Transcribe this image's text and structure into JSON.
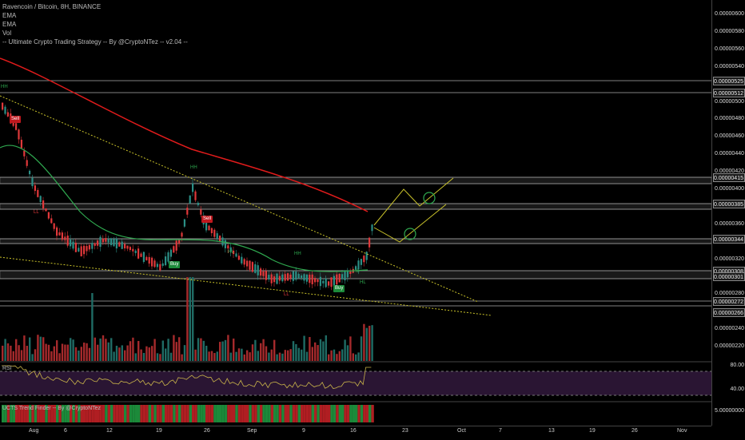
{
  "legend": {
    "symbol": "Ravencoin / Bitcoin, 8H, BINANCE",
    "ind1": "EMA",
    "ind2": "EMA",
    "ind3": "Vol",
    "strategy": "-- Ultimate Crypto Trading Strategy -- By @CryptoNTez -- v2.04 --"
  },
  "price_ticks": [
    "0.00000600",
    "0.00000580",
    "0.00000560",
    "0.00000540",
    "0.00000520",
    "0.00000500",
    "0.00000480",
    "0.00000460",
    "0.00000440",
    "0.00000420",
    "0.00000400",
    "0.00000380",
    "0.00000360",
    "0.00000340",
    "0.00000320",
    "0.00000300",
    "0.00000280",
    "0.00000260",
    "0.00000240",
    "0.00000220"
  ],
  "price_tags": [
    "0.00000525",
    "0.00000512",
    "0.00000415",
    "0.00000385",
    "0.00000344",
    "0.00000308",
    "0.00000301",
    "0.00000272",
    "0.00000266"
  ],
  "rsi": {
    "label": "RSI",
    "tick_high": "80.00",
    "tick_low": "40.00"
  },
  "ucts": {
    "label": "UCTS Trend Finder -- By @CryptoNTez",
    "tick": "5.00000000"
  },
  "time_ticks": [
    "Aug",
    "6",
    "12",
    "19",
    "26",
    "Sep",
    "9",
    "16",
    "23",
    "Oct",
    "7",
    "13",
    "19",
    "26",
    "Nov"
  ],
  "signals": {
    "sell1": "Sell",
    "sell2": "Sell",
    "buy1": "Buy",
    "buy2": "Buy"
  },
  "pivot_labels": {
    "hh1": "HH",
    "hh2": "HH",
    "hh3": "HH",
    "hl1": "HL",
    "hl2": "HL",
    "hl3": "HL",
    "ll1": "LL",
    "ll2": "LL"
  },
  "colors": {
    "ema_red": "#e01b1b",
    "ema_green": "#2fa84f",
    "trend": "#c9c22a",
    "candle_up": "#2b8f86",
    "candle_down": "#e0383a",
    "rsi_band": "#2a1533"
  }
}
